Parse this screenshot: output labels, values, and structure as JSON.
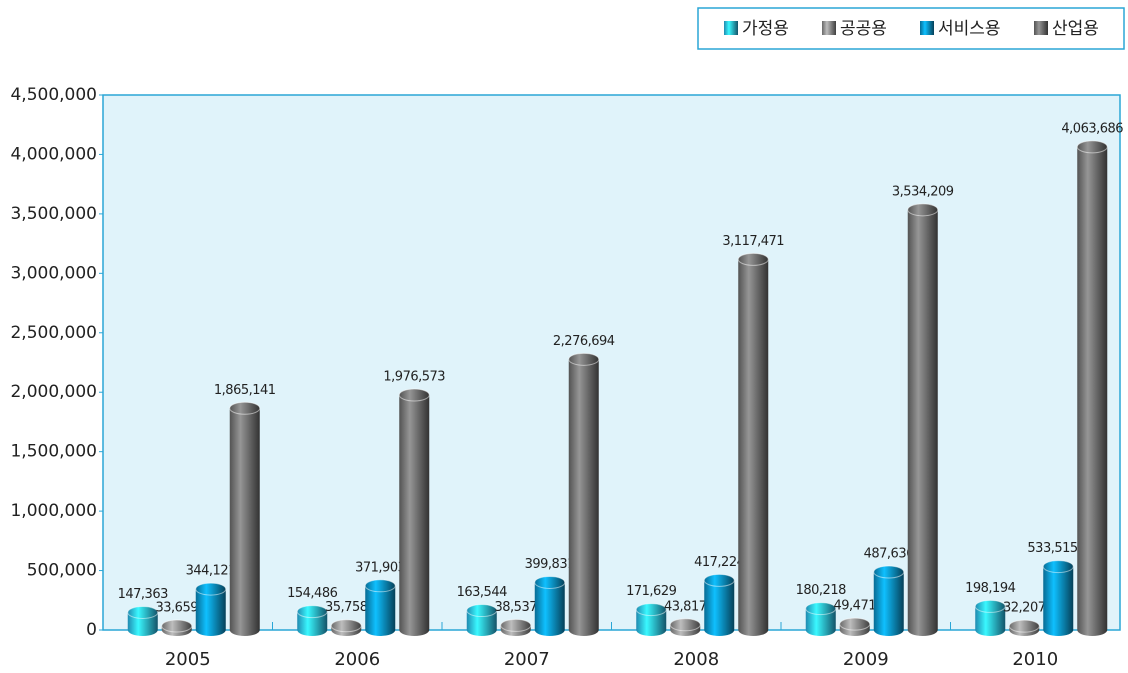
{
  "chart_data": {
    "type": "bar",
    "categories": [
      "2005",
      "2006",
      "2007",
      "2008",
      "2009",
      "2010"
    ],
    "series": [
      {
        "name": "가정용",
        "color": "#2bb8ea",
        "values": [
          147363,
          154486,
          163544,
          171629,
          180218,
          198194
        ],
        "value_labels": [
          "147,363",
          "154,486",
          "163,544",
          "171,629",
          "180,218",
          "198,194"
        ]
      },
      {
        "name": "공공용",
        "color": "#8c8c8c",
        "values": [
          33659,
          35758,
          38537,
          43817,
          49471,
          32207
        ],
        "value_labels": [
          "33,659",
          "35,758",
          "38,537",
          "43,817",
          "49,471",
          "32,207"
        ]
      },
      {
        "name": "서비스용",
        "color": "#0b8ec4",
        "values": [
          344121,
          371903,
          399831,
          417224,
          487636,
          533515
        ],
        "value_labels": [
          "344,121",
          "371,903",
          "399,831",
          "417,224",
          "487,636",
          "533,515.0"
        ]
      },
      {
        "name": "산업용",
        "color": "#6f6f6f",
        "values": [
          1865141,
          1976573,
          2276694,
          3117471,
          3534209,
          4063686
        ],
        "value_labels": [
          "1,865,141",
          "1,976,573",
          "2,276,694",
          "3,117,471",
          "3,534,209",
          "4,063,686"
        ]
      }
    ],
    "ylim": [
      0,
      4500000
    ],
    "yticks": [
      0,
      {
        "value": 500000,
        "label": "500,000"
      },
      {
        "value": 1000000,
        "label": "1,000,000"
      },
      {
        "value": 1500000,
        "label": "1,500,000"
      },
      {
        "value": 2000000,
        "label": "2,000,000"
      },
      {
        "value": 2500000,
        "label": "2,500,000"
      },
      {
        "value": 3000000,
        "label": "3,000,000"
      },
      {
        "value": 3500000,
        "label": "3,500,000"
      },
      {
        "value": 4000000,
        "label": "4,000,000"
      },
      {
        "value": 4500000,
        "label": "4,500,000"
      }
    ],
    "legend": "top-right"
  }
}
